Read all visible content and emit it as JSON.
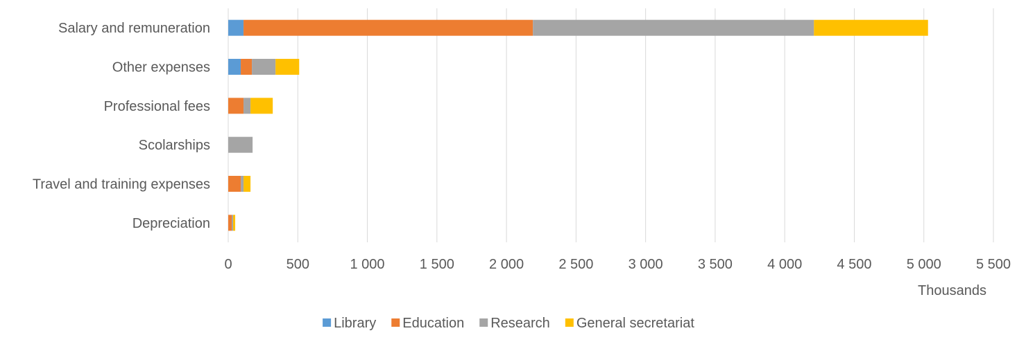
{
  "chart_data": {
    "type": "bar",
    "orientation": "horizontal",
    "stacked": true,
    "categories": [
      "Salary and remuneration",
      "Other expenses",
      "Professional fees",
      "Scolarships",
      "Travel and training expenses",
      "Depreciation"
    ],
    "series": [
      {
        "name": "Library",
        "color": "#5B9BD5",
        "values": [
          110,
          90,
          0,
          0,
          0,
          0
        ]
      },
      {
        "name": "Education",
        "color": "#ED7D31",
        "values": [
          2080,
          80,
          110,
          0,
          90,
          25
        ]
      },
      {
        "name": "Research",
        "color": "#A5A5A5",
        "values": [
          2020,
          170,
          50,
          175,
          20,
          10
        ]
      },
      {
        "name": "General secretariat",
        "color": "#FFC000",
        "values": [
          820,
          170,
          160,
          0,
          50,
          15
        ]
      }
    ],
    "xlim": [
      0,
      5500
    ],
    "xticks": [
      "0",
      "500",
      "1 000",
      "1 500",
      "2 000",
      "2 500",
      "3 000",
      "3 500",
      "4 000",
      "4 500",
      "5 000",
      "5 500"
    ],
    "xunit_label": "Thousands",
    "grid": "vertical",
    "legend": "bottom-center"
  }
}
